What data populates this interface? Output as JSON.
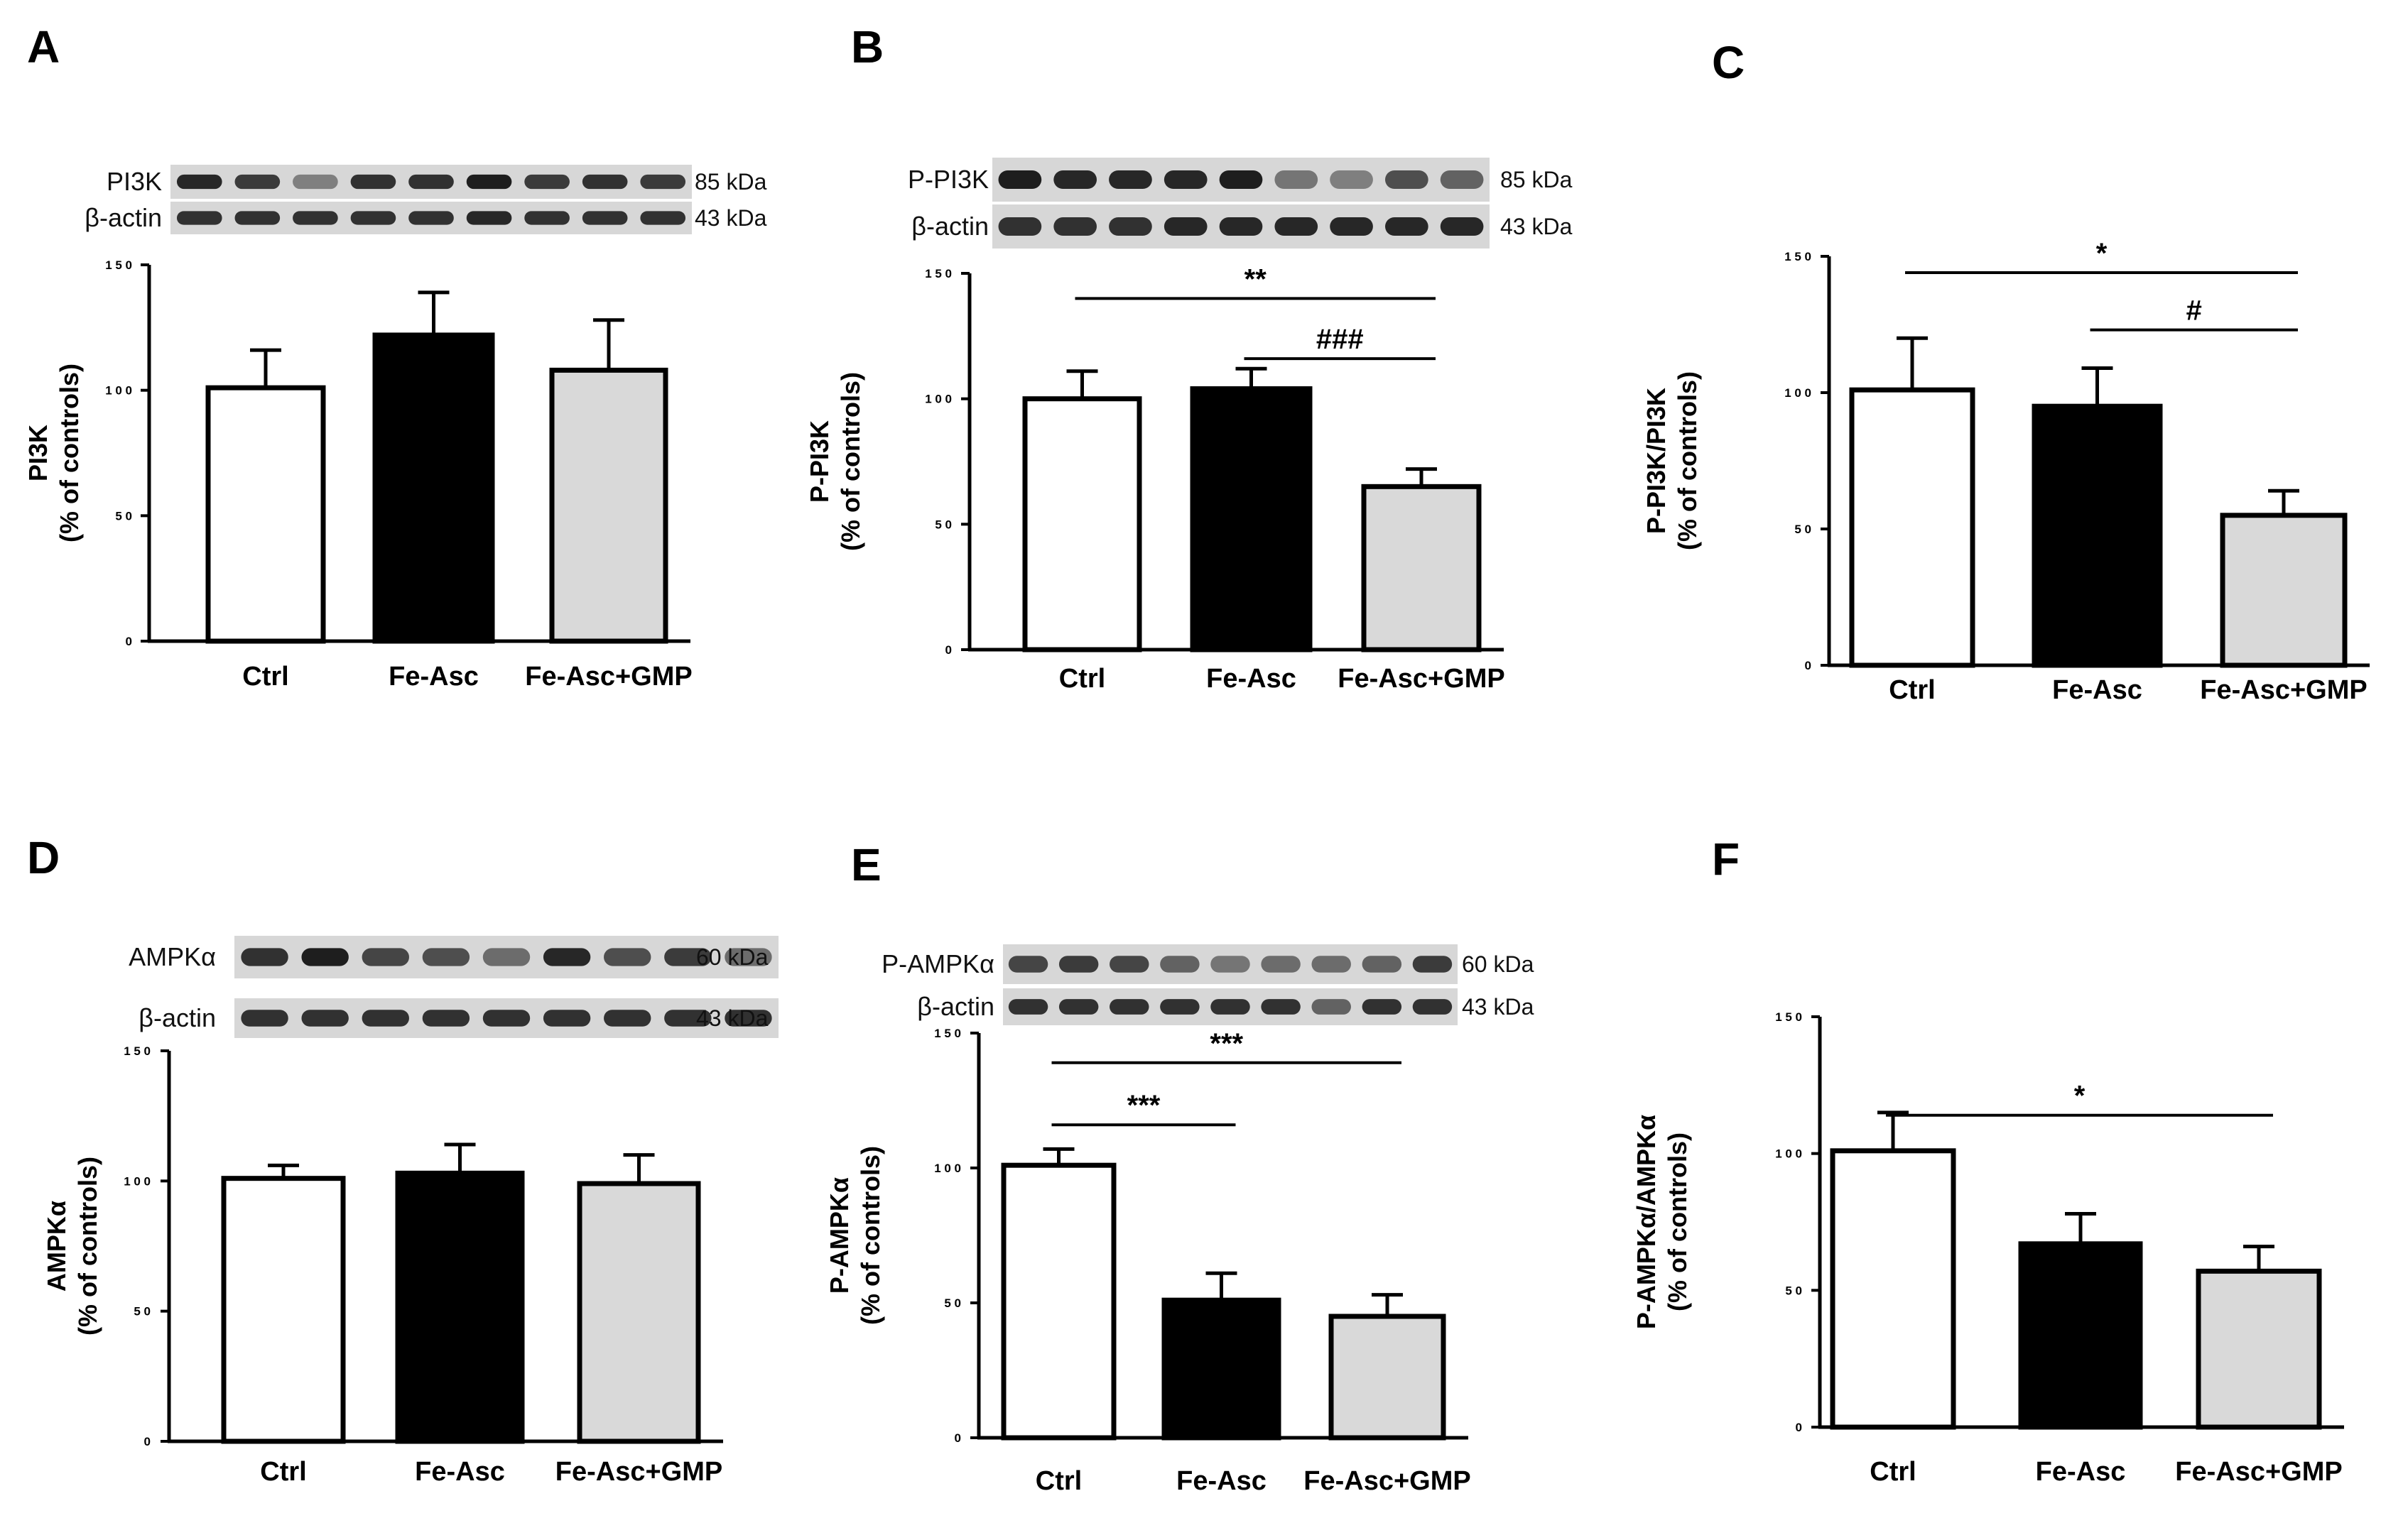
{
  "colors": {
    "ctrl": "#ffffff",
    "fe_asc": "#000000",
    "fe_asc_gmp": "#d9d9d9",
    "blot_bg": "#d7d7d7",
    "band": "#141414",
    "axis": "#000000"
  },
  "chart_data": [
    {
      "panel": "A",
      "type": "bar",
      "categories": [
        "Ctrl",
        "Fe-Asc",
        "Fe-Asc+GMP"
      ],
      "values": [
        101,
        122,
        108
      ],
      "errors": [
        15,
        17,
        20
      ],
      "ylabel": [
        "PI3K",
        "(% of controls)"
      ],
      "ylim": [
        0,
        150
      ],
      "yticks": [
        "0",
        "5 0",
        "1 0 0",
        "1 5 0"
      ],
      "significance": [],
      "blot": [
        {
          "label": "PI3K",
          "kda": "85 kDa",
          "intensity": [
            0.9,
            0.8,
            0.45,
            0.85,
            0.85,
            0.95,
            0.8,
            0.85,
            0.8
          ]
        },
        {
          "label": "β-actin",
          "kda": "43 kDa",
          "intensity": [
            0.85,
            0.85,
            0.85,
            0.85,
            0.85,
            0.9,
            0.85,
            0.85,
            0.85
          ]
        }
      ]
    },
    {
      "panel": "B",
      "type": "bar",
      "categories": [
        "Ctrl",
        "Fe-Asc",
        "Fe-Asc+GMP"
      ],
      "values": [
        100,
        104,
        65
      ],
      "errors": [
        11,
        8,
        7
      ],
      "ylabel": [
        "P-PI3K",
        "(% of controls)"
      ],
      "ylim": [
        0,
        150
      ],
      "yticks": [
        "0",
        "5 0",
        "1 0 0",
        "1 5 0"
      ],
      "significance": [
        {
          "label": "**",
          "from": 0,
          "to": 2,
          "y": 140
        },
        {
          "label": "###",
          "from": 1,
          "to": 2,
          "y": 116
        }
      ],
      "blot": [
        {
          "label": "P-PI3K",
          "kda": "85 kDa",
          "intensity": [
            0.95,
            0.9,
            0.9,
            0.9,
            0.95,
            0.5,
            0.45,
            0.7,
            0.6
          ]
        },
        {
          "label": "β-actin",
          "kda": "43 kDa",
          "intensity": [
            0.85,
            0.85,
            0.85,
            0.9,
            0.9,
            0.9,
            0.9,
            0.9,
            0.9
          ]
        }
      ]
    },
    {
      "panel": "C",
      "type": "bar",
      "categories": [
        "Ctrl",
        "Fe-Asc",
        "Fe-Asc+GMP"
      ],
      "values": [
        101,
        95,
        55
      ],
      "errors": [
        19,
        14,
        9
      ],
      "ylabel": [
        "P-PI3K/PI3K",
        "(% of controls)"
      ],
      "ylim": [
        0,
        150
      ],
      "yticks": [
        "0",
        "5 0",
        "1 0 0",
        "1 5 0"
      ],
      "significance": [
        {
          "label": "*",
          "from": 0,
          "to": 2,
          "y": 144
        },
        {
          "label": "#",
          "from": 1,
          "to": 2,
          "y": 123
        }
      ]
    },
    {
      "panel": "D",
      "type": "bar",
      "categories": [
        "Ctrl",
        "Fe-Asc",
        "Fe-Asc+GMP"
      ],
      "values": [
        101,
        103,
        99
      ],
      "errors": [
        5,
        11,
        11
      ],
      "ylabel": [
        "AMPKα",
        "(% of controls)"
      ],
      "ylim": [
        0,
        150
      ],
      "yticks": [
        "0",
        "5 0",
        "1 0 0",
        "1 5 0"
      ],
      "significance": [],
      "blot": [
        {
          "label": "AMPKα",
          "kda": "60 kDa",
          "intensity": [
            0.85,
            0.95,
            0.75,
            0.7,
            0.55,
            0.9,
            0.7,
            0.8,
            0.55
          ]
        },
        {
          "label": "β-actin",
          "kda": "43 kDa",
          "intensity": [
            0.85,
            0.85,
            0.85,
            0.85,
            0.85,
            0.85,
            0.85,
            0.85,
            0.85
          ]
        }
      ]
    },
    {
      "panel": "E",
      "type": "bar",
      "categories": [
        "Ctrl",
        "Fe-Asc",
        "Fe-Asc+GMP"
      ],
      "values": [
        101,
        51,
        45
      ],
      "errors": [
        6,
        10,
        8
      ],
      "ylabel": [
        "P-AMPKα",
        "(% of controls)"
      ],
      "ylim": [
        0,
        150
      ],
      "yticks": [
        "0",
        "5 0",
        "1 0 0",
        "1 5 0"
      ],
      "significance": [
        {
          "label": "***",
          "from": 0,
          "to": 1,
          "y": 116
        },
        {
          "label": "***",
          "from": 0,
          "to": 2,
          "y": 139
        }
      ],
      "blot": [
        {
          "label": "P-AMPKα",
          "kda": "60 kDa",
          "intensity": [
            0.75,
            0.8,
            0.75,
            0.6,
            0.5,
            0.55,
            0.55,
            0.6,
            0.8
          ]
        },
        {
          "label": "β-actin",
          "kda": "43 kDa",
          "intensity": [
            0.85,
            0.85,
            0.85,
            0.85,
            0.85,
            0.85,
            0.6,
            0.85,
            0.85
          ]
        }
      ]
    },
    {
      "panel": "F",
      "type": "bar",
      "categories": [
        "Ctrl",
        "Fe-Asc",
        "Fe-Asc+GMP"
      ],
      "values": [
        101,
        67,
        57
      ],
      "errors": [
        14,
        11,
        9
      ],
      "ylabel": [
        "P-AMPKα/AMPKα",
        "(% of controls)"
      ],
      "ylim": [
        0,
        150
      ],
      "yticks": [
        "0",
        "5 0",
        "1 0 0",
        "1 5 0"
      ],
      "significance": [
        {
          "label": "*",
          "from": 0,
          "to": 2,
          "y": 114
        }
      ]
    }
  ]
}
